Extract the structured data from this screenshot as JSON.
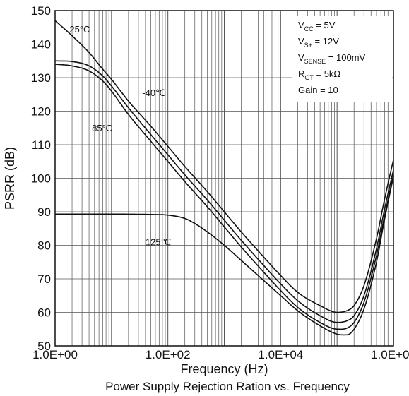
{
  "chart_data": {
    "type": "line",
    "title": "Power Supply Rejection Ration vs. Frequency",
    "xlabel": "Frequency (Hz)",
    "ylabel": "PSRR (dB)",
    "x_scale": "log",
    "xlim": [
      1,
      1000000
    ],
    "ylim": [
      50,
      150
    ],
    "x_tick_labels": [
      "1.0E+00",
      "1.0E+02",
      "1.0E+04",
      "1.0E+06"
    ],
    "y_ticks": [
      50,
      60,
      70,
      80,
      90,
      100,
      110,
      120,
      130,
      140,
      150
    ],
    "grid": true,
    "series": [
      {
        "name": "25°C",
        "x": [
          1,
          2,
          4,
          7,
          10,
          20,
          50,
          100,
          200,
          500,
          1000,
          2000,
          5000,
          10000,
          20000,
          50000,
          100000,
          150000,
          200000,
          300000,
          500000,
          700000,
          1000000
        ],
        "y": [
          147,
          142.5,
          137.5,
          132.5,
          129.5,
          123,
          115.5,
          109.5,
          103.5,
          96,
          90,
          84,
          76.5,
          71,
          66,
          62,
          60,
          60.5,
          62,
          68,
          82,
          94,
          105.5
        ]
      },
      {
        "name": "-40℃",
        "x": [
          1,
          2,
          4,
          7,
          10,
          20,
          50,
          100,
          200,
          500,
          1000,
          2000,
          5000,
          10000,
          20000,
          50000,
          100000,
          150000,
          200000,
          300000,
          500000,
          700000,
          1000000
        ],
        "y": [
          135,
          134.8,
          133.5,
          130.5,
          127.5,
          121,
          113,
          107,
          101,
          93.5,
          87.5,
          81.5,
          74,
          68.5,
          63.5,
          59,
          57,
          57.5,
          59,
          65,
          79,
          91,
          102.5
        ]
      },
      {
        "name": "85°C",
        "x": [
          1,
          2,
          4,
          7,
          10,
          20,
          50,
          100,
          200,
          500,
          1000,
          2000,
          5000,
          10000,
          20000,
          50000,
          100000,
          150000,
          200000,
          300000,
          500000,
          700000,
          1000000
        ],
        "y": [
          134,
          133.5,
          132,
          129,
          126,
          119,
          111,
          105,
          99,
          91.5,
          85.5,
          79.5,
          72,
          66.5,
          61.5,
          57,
          55,
          55.3,
          57,
          63,
          77,
          89,
          101
        ]
      },
      {
        "name": "125℃",
        "x": [
          1,
          10,
          50,
          100,
          200,
          300,
          500,
          1000,
          2000,
          5000,
          10000,
          20000,
          50000,
          100000,
          150000,
          200000,
          300000,
          500000,
          700000,
          1000000
        ],
        "y": [
          89.3,
          89.3,
          89.2,
          89,
          88,
          86.5,
          84,
          80,
          75.5,
          69.5,
          65,
          60.5,
          56,
          53.5,
          53.3,
          55,
          61,
          75,
          88,
          100.5
        ]
      }
    ],
    "annotations": [
      {
        "series": "25°C",
        "text": "25°C"
      },
      {
        "series": "-40℃",
        "text": "-40℃"
      },
      {
        "series": "85°C",
        "text": "85°C"
      },
      {
        "series": "125℃",
        "text": "125℃"
      }
    ],
    "conditions": [
      {
        "main": "V",
        "sub": "CC",
        "rest": " = 5V"
      },
      {
        "main": "V",
        "sub": "S+",
        "rest": " = 12V"
      },
      {
        "main": "V",
        "sub": "SENSE",
        "rest": " = 100mV"
      },
      {
        "main": "R",
        "sub": "GT",
        "rest": " = 5kΩ"
      },
      {
        "main": "Gain = 10",
        "sub": "",
        "rest": ""
      }
    ]
  }
}
